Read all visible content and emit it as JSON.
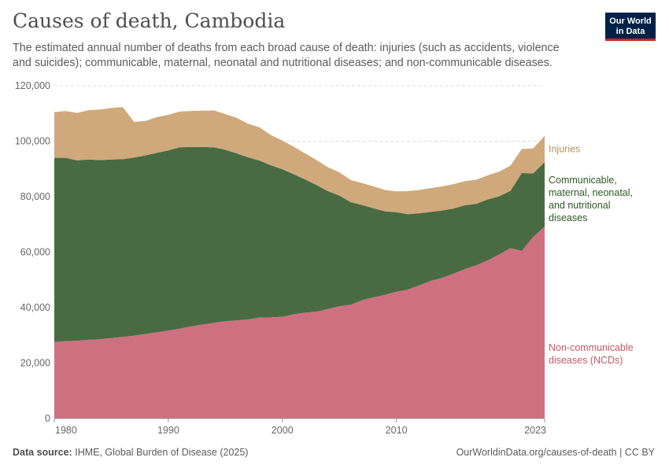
{
  "header": {
    "title": "Causes of death, Cambodia",
    "subtitle": "The estimated annual number of deaths from each broad cause of death: injuries (such as accidents, violence and suicides); communicable, maternal, neonatal and nutritional diseases; and non-communicable diseases.",
    "logo_line1": "Our World",
    "logo_line2": "in Data"
  },
  "footer": {
    "source_label": "Data source:",
    "source_text": "IHME, Global Burden of Disease (2025)",
    "url_text": "OurWorldinData.org/causes-of-death | CC BY"
  },
  "chart_data": {
    "type": "area",
    "stacked": true,
    "title": "Causes of death, Cambodia",
    "xlabel": "",
    "ylabel": "",
    "xlim": [
      1980,
      2023
    ],
    "ylim": [
      0,
      120000
    ],
    "y_ticks": [
      0,
      20000,
      40000,
      60000,
      80000,
      100000,
      120000
    ],
    "y_tick_labels": [
      "0",
      "20,000",
      "40,000",
      "60,000",
      "80,000",
      "100,000",
      "120,000"
    ],
    "x_ticks": [
      1980,
      1990,
      2000,
      2010,
      2023
    ],
    "x_tick_labels": [
      "1980",
      "1990",
      "2000",
      "2010",
      "2023"
    ],
    "x": [
      1980,
      1981,
      1982,
      1983,
      1984,
      1985,
      1986,
      1987,
      1988,
      1989,
      1990,
      1991,
      1992,
      1993,
      1994,
      1995,
      1996,
      1997,
      1998,
      1999,
      2000,
      2001,
      2002,
      2003,
      2004,
      2005,
      2006,
      2007,
      2008,
      2009,
      2010,
      2011,
      2012,
      2013,
      2014,
      2015,
      2016,
      2017,
      2018,
      2019,
      2020,
      2021,
      2022,
      2023
    ],
    "series": [
      {
        "name": "Non-communicable diseases (NCDs)",
        "legend": "Non-communicable diseases (NCDs)",
        "color": "#cf7080",
        "label_color": "#c65765",
        "values": [
          27600,
          27900,
          28000,
          28400,
          28600,
          29000,
          29400,
          29900,
          30500,
          31100,
          31700,
          32400,
          33200,
          33900,
          34500,
          35100,
          35400,
          35700,
          36400,
          36500,
          36700,
          37600,
          38200,
          38500,
          39500,
          40500,
          41000,
          42700,
          43700,
          44600,
          45700,
          46500,
          48000,
          49600,
          50700,
          52200,
          53900,
          55200,
          57000,
          59100,
          61400,
          60500,
          65500,
          69200
        ]
      },
      {
        "name": "Communicable, maternal, neonatal, and nutritional diseases",
        "legend": "Communicable, maternal, neonatal, and nutritional diseases",
        "color": "#496b43",
        "label_color": "#2c5a22",
        "values": [
          66400,
          66100,
          65100,
          65000,
          64600,
          64400,
          64100,
          64200,
          64400,
          64700,
          65000,
          65400,
          64700,
          64000,
          63300,
          61800,
          60200,
          58500,
          56600,
          54800,
          53200,
          50500,
          48000,
          45700,
          42500,
          39900,
          37000,
          34300,
          32100,
          30100,
          28700,
          27200,
          26000,
          24900,
          24300,
          23500,
          23000,
          22200,
          22000,
          21000,
          20700,
          28000,
          22900,
          23300
        ]
      },
      {
        "name": "Injuries",
        "legend": "Injuries",
        "color": "#cfa97b",
        "label_color": "#b89160",
        "values": [
          16500,
          16900,
          17100,
          17800,
          18200,
          18600,
          18800,
          12900,
          12400,
          12900,
          12800,
          12900,
          13000,
          13100,
          13300,
          12900,
          12800,
          12100,
          12000,
          10900,
          10300,
          9900,
          9400,
          9000,
          8600,
          8400,
          8000,
          7900,
          7900,
          7700,
          7500,
          8300,
          8400,
          8600,
          8700,
          8800,
          8700,
          8700,
          8700,
          8900,
          9100,
          8700,
          9000,
          9400
        ]
      }
    ],
    "label_lines": [
      [
        "Injuries"
      ],
      [
        "Communicable,",
        "maternal, neonatal,",
        "and nutritional",
        "diseases"
      ],
      [
        "Non-communicable",
        "diseases (NCDs)"
      ]
    ]
  }
}
